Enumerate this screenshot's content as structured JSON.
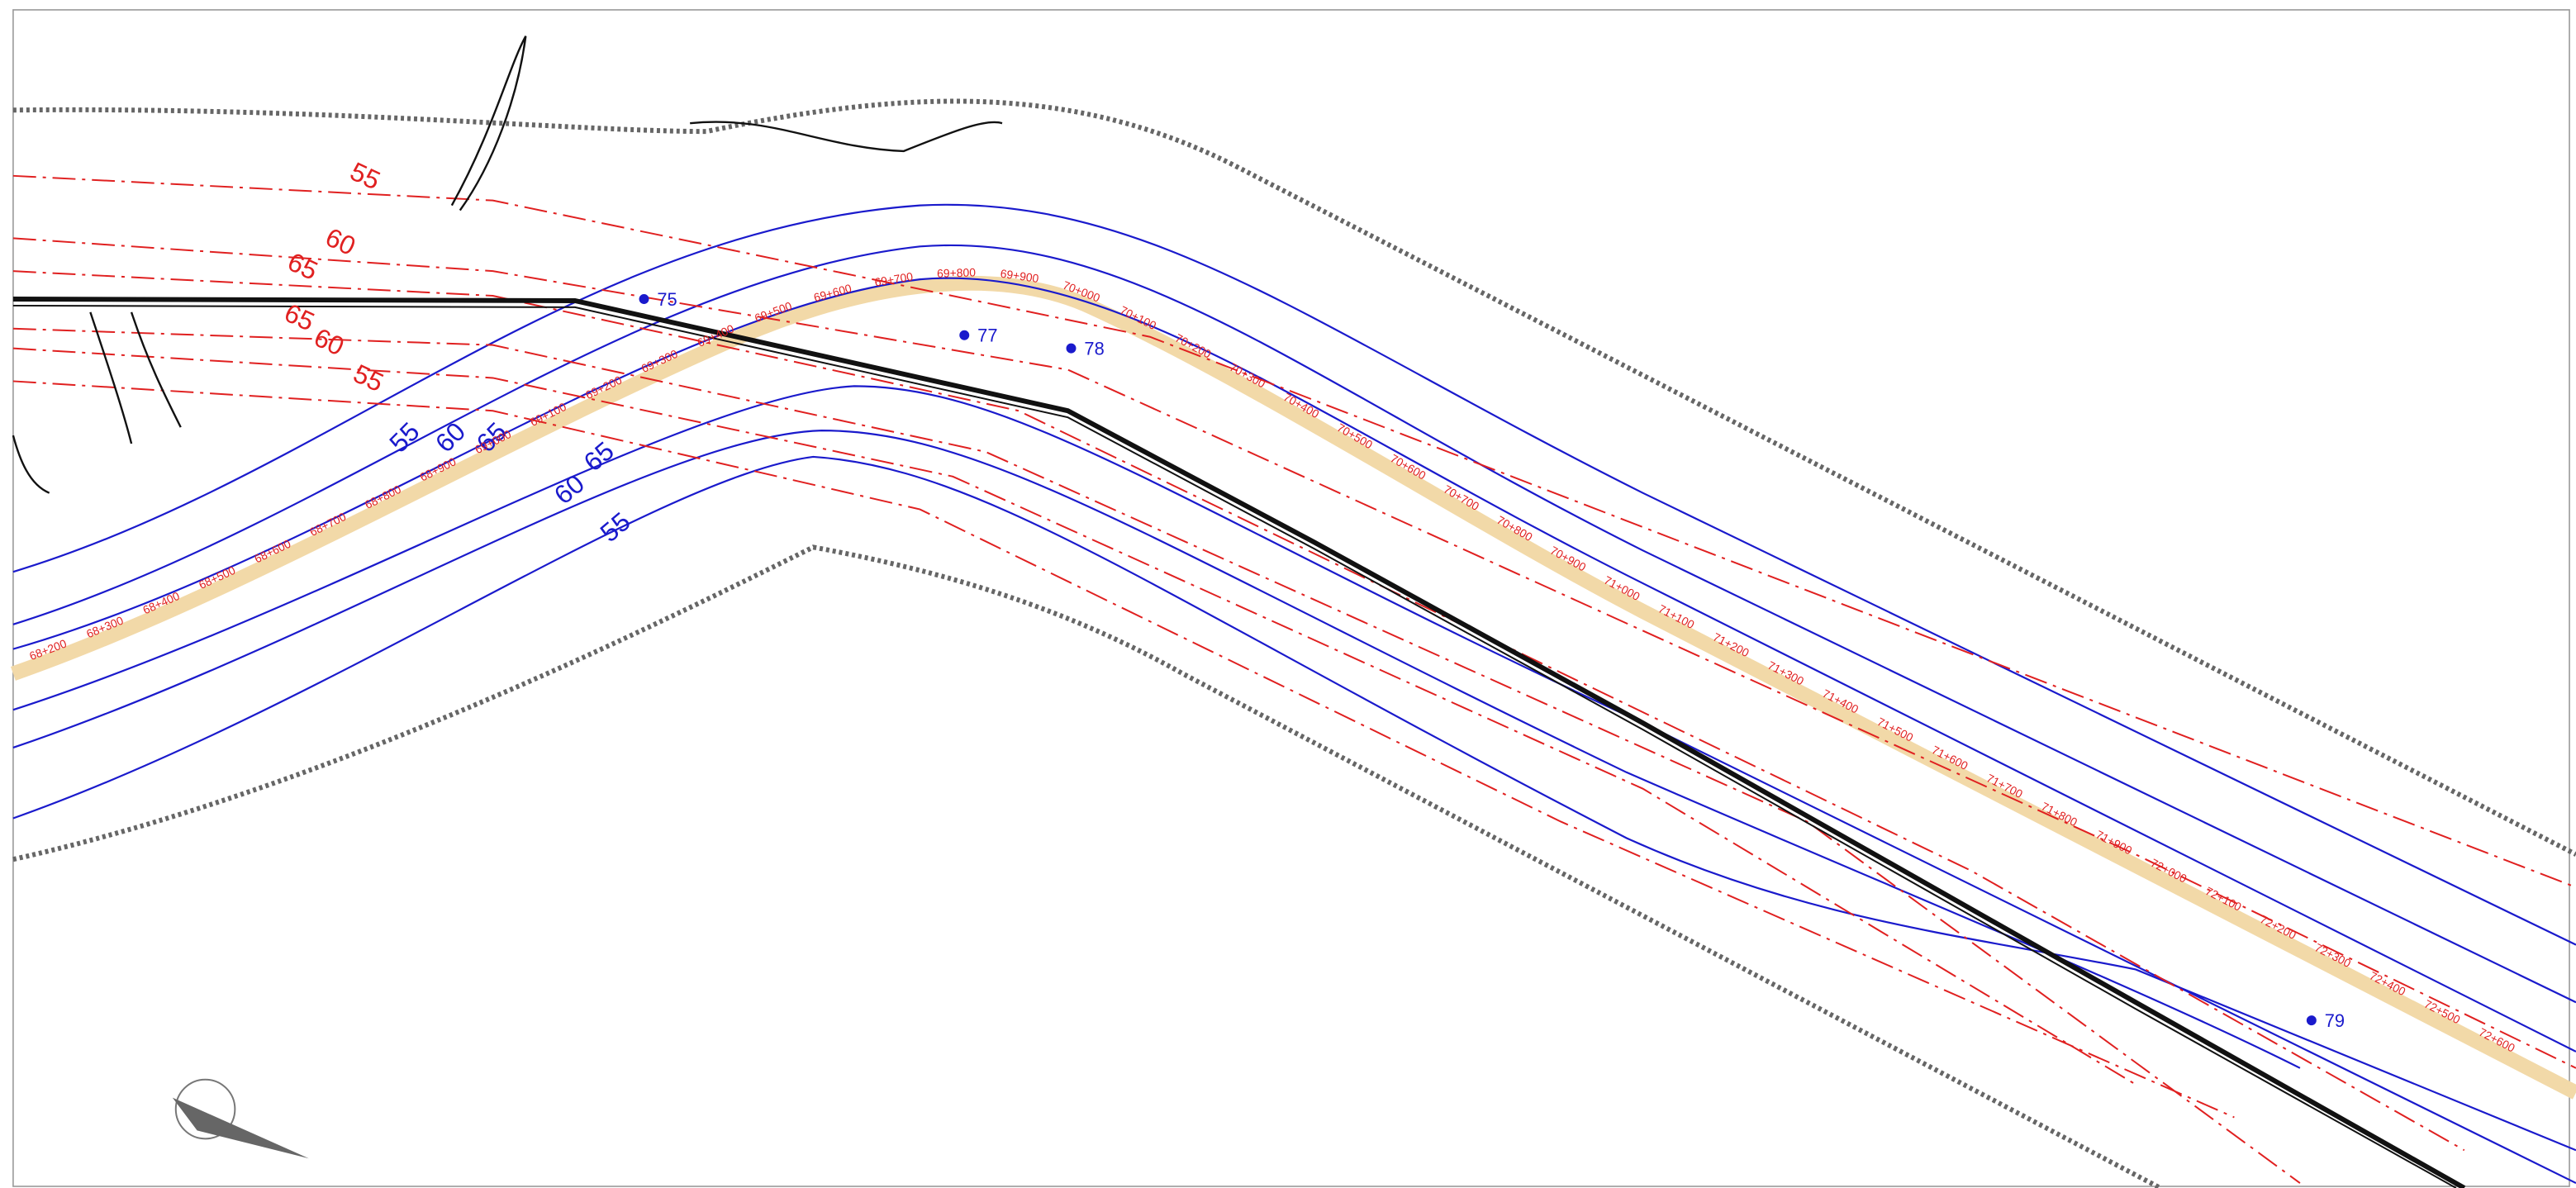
{
  "map": {
    "contours_red": [
      "55",
      "60",
      "65",
      "65",
      "60",
      "55"
    ],
    "contours_blue": [
      "55",
      "60",
      "65",
      "65",
      "60",
      "55"
    ],
    "receivers": [
      "75",
      "77",
      "78",
      "79"
    ],
    "chainages": [
      "68+200",
      "68+300",
      "68+400",
      "68+500",
      "68+600",
      "68+700",
      "68+800",
      "68+900",
      "69+000",
      "69+100",
      "69+200",
      "69+300",
      "69+400",
      "69+500",
      "69+600",
      "69+700",
      "69+800",
      "69+900",
      "70+000",
      "70+100",
      "70+200",
      "70+300",
      "70+400",
      "70+500",
      "70+600",
      "70+700",
      "70+800",
      "70+900",
      "71+000",
      "71+100",
      "71+200",
      "71+300",
      "71+400",
      "71+500",
      "71+600",
      "71+700",
      "71+800",
      "71+900",
      "72+000",
      "72+100",
      "72+200",
      "72+300",
      "72+400",
      "72+500",
      "72+600"
    ]
  }
}
